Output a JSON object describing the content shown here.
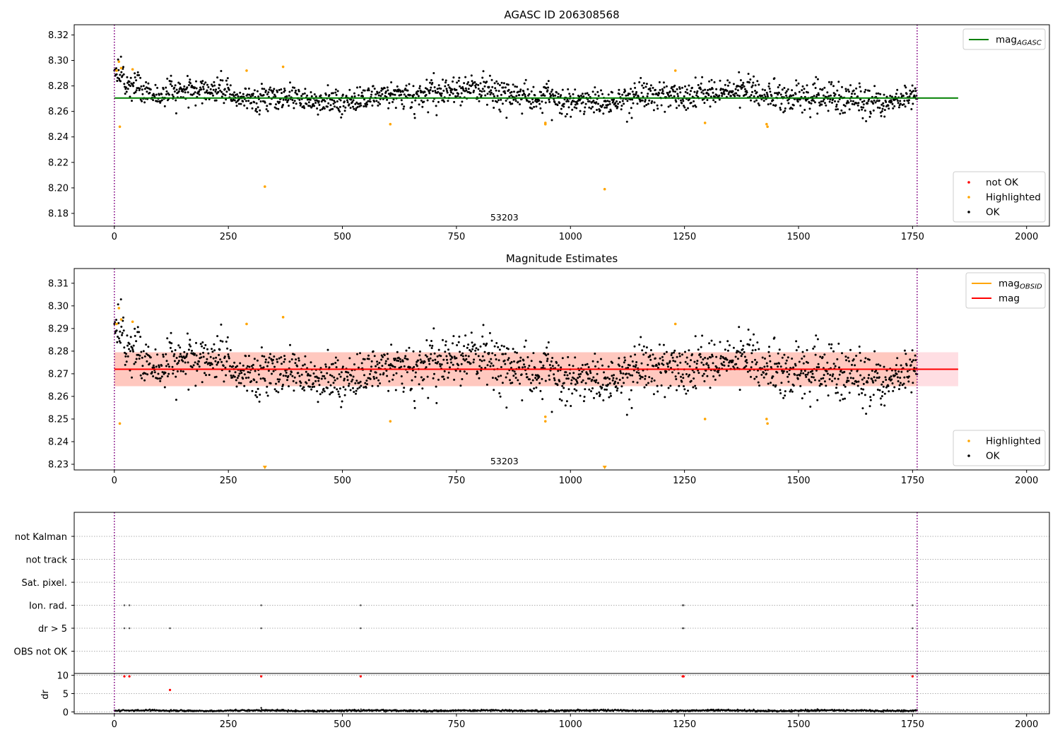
{
  "figure": {
    "background": "#ffffff"
  },
  "chart_data": [
    {
      "type": "scatter",
      "title": "AGASC ID 206308568",
      "xlim": [
        -88,
        2050
      ],
      "ylim": [
        8.17,
        8.328
      ],
      "x_ticks": [
        0,
        250,
        500,
        750,
        1000,
        1250,
        1500,
        1750,
        2000
      ],
      "y_ticks": [
        8.18,
        8.2,
        8.22,
        8.24,
        8.26,
        8.28,
        8.3,
        8.32
      ],
      "y_tick_labels": [
        "8.18",
        "8.20",
        "8.22",
        "8.24",
        "8.26",
        "8.28",
        "8.30",
        "8.32"
      ],
      "vlines": [
        0,
        1760
      ],
      "vline_color": "#800080",
      "annotation": "53203",
      "annotation_x": 880,
      "hline": {
        "name": "mag",
        "sub": "AGASC",
        "y": 8.2705,
        "x_range": [
          0,
          1850
        ],
        "color": "#008000"
      },
      "legend_top": [
        {
          "label": "mag",
          "sub": "AGASC",
          "color": "#008000",
          "kind": "line"
        }
      ],
      "legend_bottom": [
        {
          "label": "not OK",
          "color": "#ff0000",
          "kind": "dot"
        },
        {
          "label": "Highlighted",
          "color": "#ffa500",
          "kind": "dot"
        },
        {
          "label": "OK",
          "color": "#000000",
          "kind": "dot"
        }
      ],
      "n_points": 1700,
      "x_range": [
        0,
        1760
      ],
      "base_mag": 8.272,
      "scatter_sd": 0.0075,
      "highlighted_points": [
        [
          5,
          8.292
        ],
        [
          10,
          8.299
        ],
        [
          12,
          8.248
        ],
        [
          15,
          8.294
        ],
        [
          40,
          8.293
        ],
        [
          290,
          8.292
        ],
        [
          330,
          8.201
        ],
        [
          370,
          8.295
        ],
        [
          605,
          8.25
        ],
        [
          945,
          8.251
        ],
        [
          945,
          8.25
        ],
        [
          1075,
          8.199
        ],
        [
          1230,
          8.292
        ],
        [
          1295,
          8.251
        ],
        [
          1430,
          8.25
        ],
        [
          1432,
          8.248
        ]
      ]
    },
    {
      "type": "scatter",
      "title": "Magnitude Estimates",
      "xlim": [
        -88,
        2050
      ],
      "ylim": [
        8.2275,
        8.3165
      ],
      "x_ticks": [
        0,
        250,
        500,
        750,
        1000,
        1250,
        1500,
        1750,
        2000
      ],
      "y_ticks": [
        8.23,
        8.24,
        8.25,
        8.26,
        8.27,
        8.28,
        8.29,
        8.3,
        8.31
      ],
      "y_tick_labels": [
        "8.23",
        "8.24",
        "8.25",
        "8.26",
        "8.27",
        "8.28",
        "8.29",
        "8.30",
        "8.31"
      ],
      "vlines": [
        0,
        1760
      ],
      "vline_color": "#800080",
      "annotation": "53203",
      "annotation_x": 880,
      "band": {
        "y0": 8.2645,
        "y1": 8.2795,
        "x_range": [
          0,
          1850
        ],
        "color": "#ffb6c1"
      },
      "band_obsid": {
        "y0": 8.2645,
        "y1": 8.2795,
        "x_range": [
          0,
          1760
        ],
        "color": "#ffa07a"
      },
      "hline": {
        "name": "mag",
        "y": 8.272,
        "x_range": [
          0,
          1850
        ],
        "color": "#ff0000"
      },
      "legend_top": [
        {
          "label": "mag",
          "sub": "OBSID",
          "color": "#ffa500",
          "kind": "line"
        },
        {
          "label": "mag",
          "sub": "",
          "color": "#ff0000",
          "kind": "line"
        }
      ],
      "legend_bottom": [
        {
          "label": "Highlighted",
          "color": "#ffa500",
          "kind": "dot"
        },
        {
          "label": "OK",
          "color": "#000000",
          "kind": "dot"
        }
      ],
      "n_points": 1700,
      "x_range": [
        0,
        1760
      ],
      "base_mag": 8.272,
      "scatter_sd": 0.0075,
      "highlighted_points": [
        [
          5,
          8.292
        ],
        [
          10,
          8.299
        ],
        [
          12,
          8.248
        ],
        [
          15,
          8.294
        ],
        [
          40,
          8.293
        ],
        [
          290,
          8.292
        ],
        [
          370,
          8.295
        ],
        [
          605,
          8.249
        ],
        [
          945,
          8.251
        ],
        [
          945,
          8.249
        ],
        [
          1230,
          8.292
        ],
        [
          1295,
          8.25
        ],
        [
          1430,
          8.25
        ],
        [
          1432,
          8.248
        ]
      ],
      "off_axis_markers": [
        330,
        1075
      ]
    },
    {
      "type": "scatter",
      "title": "",
      "xlim": [
        -88,
        2050
      ],
      "x_ticks": [
        0,
        250,
        500,
        750,
        1000,
        1250,
        1500,
        1750,
        2000
      ],
      "vlines": [
        0,
        1760
      ],
      "vline_color": "#800080",
      "flag_categories": [
        "not Kalman",
        "not track",
        "Sat. pixel.",
        "Ion. rad.",
        "dr > 5",
        "OBS not OK"
      ],
      "flag_points": {
        "Ion. rad.": [
          22,
          33,
          322,
          540,
          1246,
          1248,
          1750
        ],
        "dr > 5": [
          22,
          33,
          122,
          322,
          540,
          1246,
          1248,
          1750
        ]
      },
      "dr_axis": {
        "ylabel": "dr",
        "ylim": [
          -0.5,
          10.5
        ],
        "y_ticks": [
          0,
          5,
          10
        ],
        "red_points": [
          [
            22,
            9.7
          ],
          [
            33,
            9.7
          ],
          [
            122,
            6.0
          ],
          [
            322,
            9.7
          ],
          [
            540,
            9.7
          ],
          [
            1246,
            9.7
          ],
          [
            1248,
            9.7
          ],
          [
            1750,
            9.7
          ]
        ],
        "black_outlier": [
          322,
          1.1
        ],
        "baseline_mean": 0.35,
        "baseline_sd": 0.12
      }
    }
  ]
}
